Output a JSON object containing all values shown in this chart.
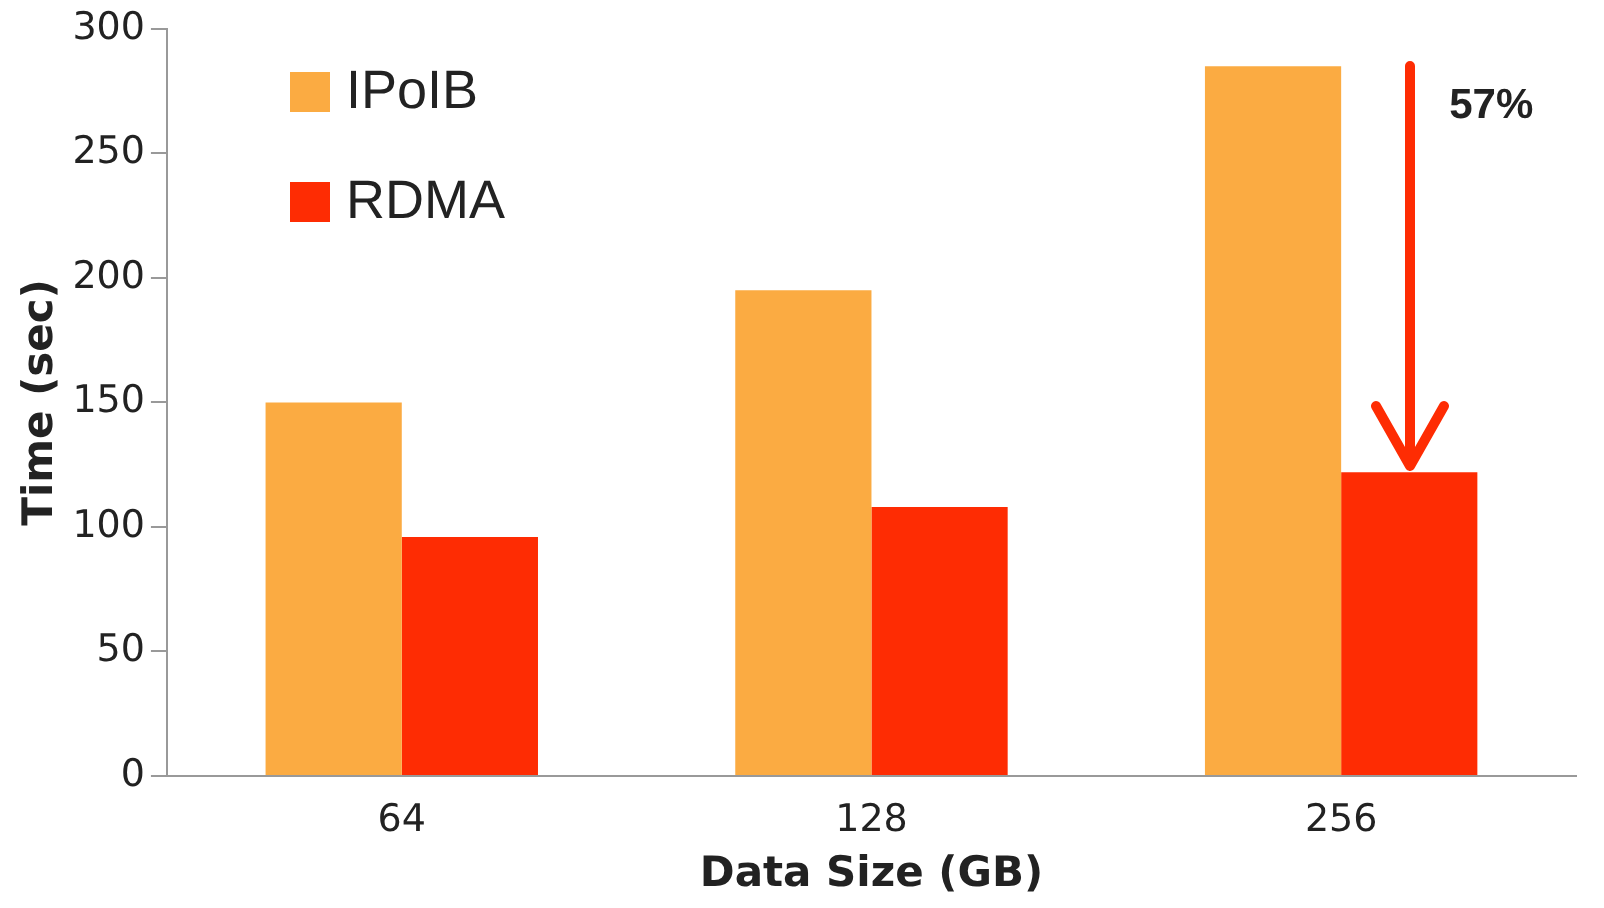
{
  "chart_data": {
    "type": "bar",
    "xlabel": "Data Size (GB)",
    "ylabel": "Time (sec)",
    "categories": [
      "64",
      "128",
      "256"
    ],
    "series": [
      {
        "name": "IPoIB",
        "color": "#fbab42",
        "values": [
          150,
          195,
          285
        ]
      },
      {
        "name": "RDMA",
        "color": "#fe2c03",
        "values": [
          96,
          108,
          122
        ]
      }
    ],
    "ylim": [
      0,
      300
    ],
    "yticks": [
      0,
      50,
      100,
      150,
      200,
      250,
      300
    ],
    "grid": false,
    "legend": "top left",
    "annotations": [
      {
        "text": "57%",
        "x": "256",
        "y": 285
      }
    ]
  }
}
